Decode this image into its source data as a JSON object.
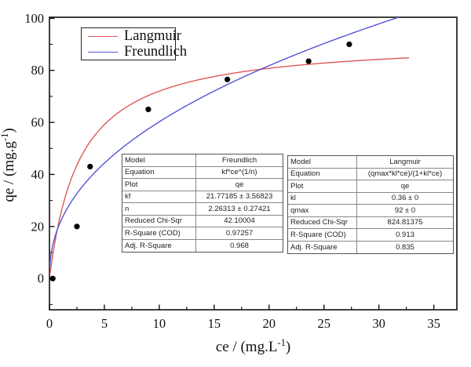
{
  "chart_data": {
    "type": "scatter",
    "title": "",
    "xlabel": {
      "prefix": "ce / (mg.L",
      "sup": "-1",
      "suffix": ")"
    },
    "ylabel": {
      "prefix": "qe / (mg.g",
      "sup": "-1",
      "suffix": ")"
    },
    "xlim": [
      0,
      37.1
    ],
    "ylim": [
      -12,
      100.4
    ],
    "x_major_ticks": [
      0,
      5,
      10,
      15,
      20,
      25,
      30,
      35
    ],
    "x_minor_ticks": [
      2.5,
      7.5,
      12.5,
      17.5,
      22.5,
      27.5,
      32.5
    ],
    "y_major_ticks": [
      0,
      20,
      40,
      60,
      80,
      100
    ],
    "y_minor_ticks": [
      -10,
      10,
      30,
      50,
      70,
      90
    ],
    "grid": false,
    "scatter": {
      "name": "qe",
      "color": "#000000",
      "marker_radius": 3.6,
      "points": [
        [
          0.3,
          0
        ],
        [
          2.5,
          20
        ],
        [
          3.7,
          43
        ],
        [
          9.0,
          65
        ],
        [
          16.2,
          76.5
        ],
        [
          23.6,
          83.5
        ],
        [
          27.3,
          90
        ]
      ]
    },
    "series": [
      {
        "name": "Langmuir",
        "model": "langmuir",
        "color": "#e05858",
        "params": {
          "qmax": 92,
          "kl": 0.36
        },
        "x_range": [
          0.05,
          32.8
        ]
      },
      {
        "name": "Freundlich",
        "model": "freundlich",
        "color": "#5353d5",
        "params": {
          "kf": 21.77185,
          "n": 2.26313
        },
        "x_range": [
          0.02,
          31.9
        ]
      }
    ],
    "legend": {
      "position": "top-left-inside",
      "items": [
        {
          "label": "Langmuir",
          "color": "#e05858"
        },
        {
          "label": "Freundlich",
          "color": "#5353d5"
        }
      ]
    }
  },
  "tables": [
    {
      "id": "freundlich-fit-table",
      "rows": [
        [
          "Model",
          "Freundlich"
        ],
        [
          "Equation",
          "kf*ce^(1/n)"
        ],
        [
          "Plot",
          "qe"
        ],
        [
          "kf",
          "21.77185 ± 3.56823"
        ],
        [
          "n",
          "2.26313 ± 0.27421"
        ],
        [
          "Reduced Chi-Sqr",
          "42.10004"
        ],
        [
          "R-Square (COD)",
          "0.97257"
        ],
        [
          "Adj. R-Square",
          "0.968"
        ]
      ]
    },
    {
      "id": "langmuir-fit-table",
      "rows": [
        [
          "Model",
          "Langmuir"
        ],
        [
          "Equation",
          "(qmax*kl*ce)/(1+kl*ce)"
        ],
        [
          "Plot",
          "qe"
        ],
        [
          "kl",
          "0.36 ± 0"
        ],
        [
          "qmax",
          "92 ± 0"
        ],
        [
          "Reduced Chi-Sqr",
          "824.81375"
        ],
        [
          "R-Square (COD)",
          "0.913"
        ],
        [
          "Adj. R-Square",
          "0.835"
        ]
      ]
    }
  ]
}
